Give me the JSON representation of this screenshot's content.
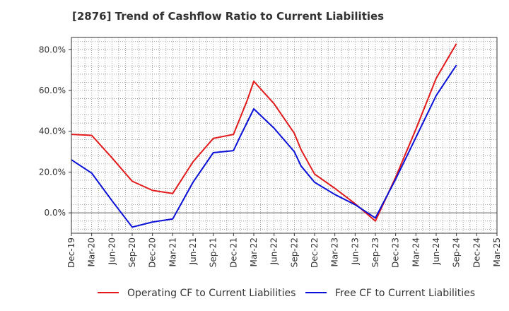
{
  "chart_data": {
    "type": "line",
    "title": "[2876]  Trend of Cashflow Ratio to Current Liabilities",
    "xlabel": "",
    "ylabel": "",
    "x_ticks": [
      "Dec-19",
      "Mar-20",
      "Jun-20",
      "Sep-20",
      "Dec-20",
      "Mar-21",
      "Jun-21",
      "Sep-21",
      "Dec-21",
      "Mar-22",
      "Jun-22",
      "Sep-22",
      "Dec-22",
      "Mar-23",
      "Jun-23",
      "Sep-23",
      "Dec-23",
      "Mar-24",
      "Jun-24",
      "Sep-24",
      "Dec-24",
      "Mar-25"
    ],
    "y_ticks": [
      {
        "value": 0,
        "label": "0.0%"
      },
      {
        "value": 20,
        "label": "20.0%"
      },
      {
        "value": 40,
        "label": "40.0%"
      },
      {
        "value": 60,
        "label": "60.0%"
      },
      {
        "value": 80,
        "label": "80.0%"
      }
    ],
    "ylim": [
      -10,
      86
    ],
    "grid": true,
    "legend_position": "bottom",
    "series": [
      {
        "name": "Operating CF to Current Liabilities",
        "color": "#e31a1c",
        "points": [
          [
            0,
            38.5
          ],
          [
            1,
            38.0
          ],
          [
            2,
            27.0
          ],
          [
            3,
            15.5
          ],
          [
            4,
            11.0
          ],
          [
            5,
            9.5
          ],
          [
            6,
            25.0
          ],
          [
            7,
            36.5
          ],
          [
            8,
            38.5
          ],
          [
            8.67,
            55.0
          ],
          [
            9,
            64.5
          ],
          [
            10,
            53.5
          ],
          [
            11,
            39.0
          ],
          [
            11.33,
            31.0
          ],
          [
            12,
            19.0
          ],
          [
            13,
            12.0
          ],
          [
            14,
            4.5
          ],
          [
            15,
            -4.0
          ],
          [
            16,
            17.5
          ],
          [
            17,
            41.0
          ],
          [
            18,
            66.0
          ],
          [
            19,
            83.0
          ]
        ]
      },
      {
        "name": "Free CF to Current Liabilities",
        "color": "#0a10d8",
        "points": [
          [
            0,
            26.0
          ],
          [
            1,
            19.5
          ],
          [
            2,
            6.0
          ],
          [
            3,
            -7.0
          ],
          [
            4,
            -4.5
          ],
          [
            5,
            -3.0
          ],
          [
            6,
            15.0
          ],
          [
            7,
            29.5
          ],
          [
            8,
            30.5
          ],
          [
            8.33,
            37.5
          ],
          [
            9,
            51.0
          ],
          [
            10,
            41.5
          ],
          [
            11,
            30.0
          ],
          [
            11.33,
            23.0
          ],
          [
            12,
            15.0
          ],
          [
            13,
            9.0
          ],
          [
            14,
            4.0
          ],
          [
            15,
            -2.5
          ],
          [
            16,
            16.5
          ],
          [
            17,
            37.0
          ],
          [
            18,
            57.5
          ],
          [
            19,
            72.5
          ]
        ]
      }
    ]
  }
}
